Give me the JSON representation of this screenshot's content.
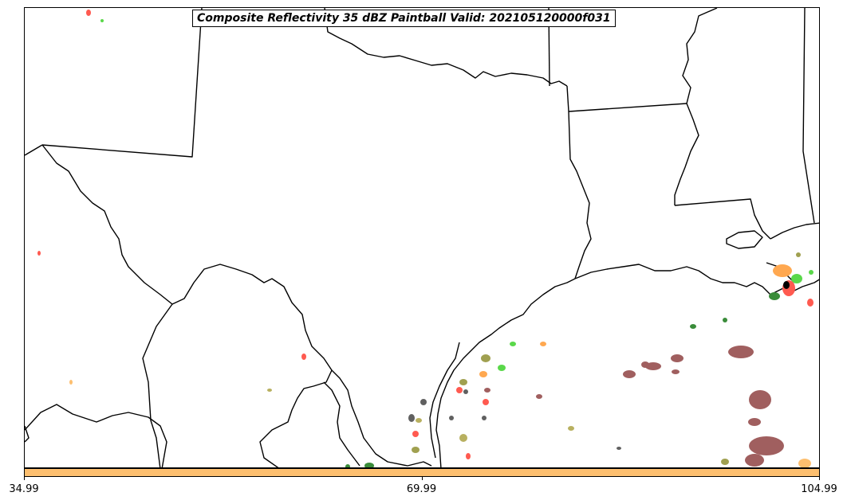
{
  "title": "Composite Reflectivity 35 dBZ Paintball Valid: 202105120000f031",
  "colorbar": {
    "color": "#fdbf6f",
    "min": 34.99,
    "max": 104.99,
    "ticks": [
      {
        "value": 34.99,
        "label": "34.99"
      },
      {
        "value": 69.99,
        "label": "69.99"
      },
      {
        "value": 104.99,
        "label": "104.99"
      }
    ]
  },
  "member_colors": [
    "#a05f5f",
    "#ff5a50",
    "#ffa850",
    "#fdbf6f",
    "#5ad84a",
    "#3a8c3a",
    "#a0a050",
    "#b8b060",
    "#606060",
    "#e33030"
  ]
}
